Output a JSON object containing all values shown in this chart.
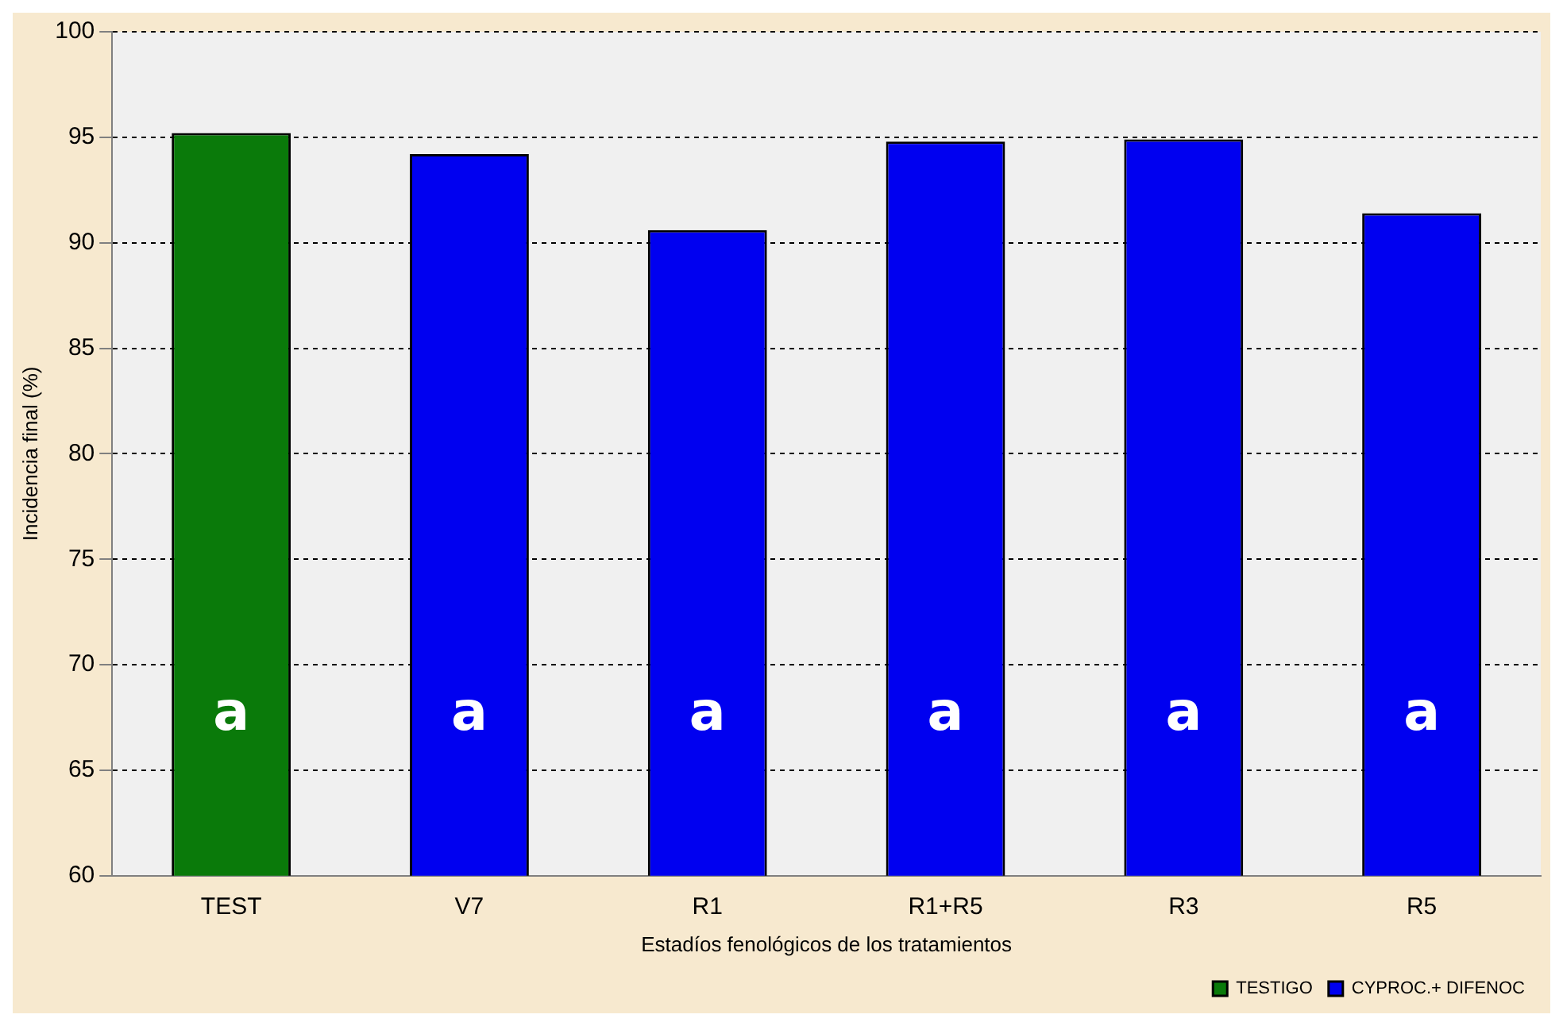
{
  "chart_data": {
    "type": "bar",
    "xlabel": "Estadíos fenológicos de los tratamientos",
    "ylabel": "Incidencia final (%)",
    "categories": [
      "TEST",
      "V7",
      "R1",
      "R1+R5",
      "R3",
      "R5"
    ],
    "series": [
      {
        "name": "TESTIGO",
        "color": "#0a7a0a",
        "values": [
          95.2,
          null,
          null,
          null,
          null,
          null
        ]
      },
      {
        "name": "CYPROC.+ DIFENOC",
        "color": "#0000f0",
        "values": [
          null,
          94.2,
          90.6,
          94.8,
          94.9,
          91.4
        ]
      }
    ],
    "ylim": [
      60,
      100
    ],
    "yticks": [
      60,
      65,
      70,
      75,
      80,
      85,
      90,
      95,
      100
    ],
    "grid": "y",
    "legend": "bottom right",
    "annotations": [
      "a",
      "a",
      "a",
      "a",
      "a",
      "a"
    ]
  }
}
